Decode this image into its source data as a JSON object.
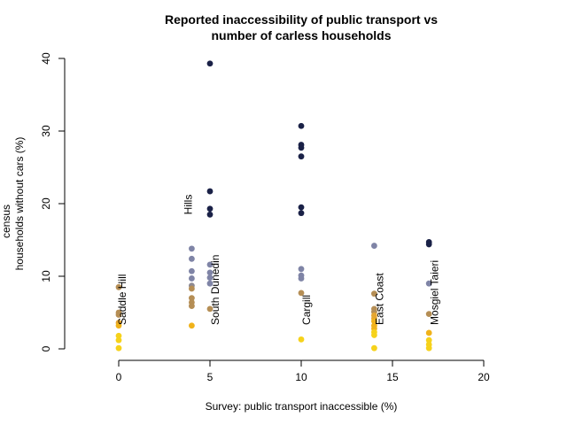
{
  "chart_data": {
    "type": "scatter",
    "title_lines": [
      "Reported inaccessibility of public transport vs",
      "number of carless households"
    ],
    "xlabel": "Survey: public transport inaccessible (%)",
    "ylabel_lines": [
      "census",
      "households without cars (%)"
    ],
    "xlim": [
      0,
      20
    ],
    "ylim": [
      0,
      40
    ],
    "xticks": [
      "0",
      "5",
      "10",
      "15",
      "20"
    ],
    "yticks": [
      "0",
      "10",
      "20",
      "30",
      "40"
    ],
    "grid": false,
    "legend": "none",
    "point_labels": [
      {
        "text": "Saddle Hill",
        "x": 0.2,
        "y": 3.3
      },
      {
        "text": "Hills",
        "x": 3.8,
        "y": 18.5
      },
      {
        "text": "South Dunedin",
        "x": 5.3,
        "y": 3.3
      },
      {
        "text": "Cargill",
        "x": 10.3,
        "y": 3.3
      },
      {
        "text": "East Coast",
        "x": 14.3,
        "y": 3.3
      },
      {
        "text": "Mosgiel Taieri",
        "x": 17.3,
        "y": 3.3
      }
    ],
    "points": [
      {
        "x": 0,
        "y": 8.5,
        "color": "#b58e55"
      },
      {
        "x": 0,
        "y": 5.0,
        "color": "#b58e55"
      },
      {
        "x": 0,
        "y": 4.7,
        "color": "#b58e55"
      },
      {
        "x": 0,
        "y": 3.6,
        "color": "#e5a630"
      },
      {
        "x": 0,
        "y": 3.2,
        "color": "#f0b21a"
      },
      {
        "x": 0,
        "y": 1.8,
        "color": "#f6d21b"
      },
      {
        "x": 0,
        "y": 1.2,
        "color": "#f6d21b"
      },
      {
        "x": 0,
        "y": 0.1,
        "color": "#f6d21b"
      },
      {
        "x": 4,
        "y": 13.8,
        "color": "#7f84a6"
      },
      {
        "x": 4,
        "y": 12.4,
        "color": "#7f84a6"
      },
      {
        "x": 4,
        "y": 10.7,
        "color": "#7f84a6"
      },
      {
        "x": 4,
        "y": 9.7,
        "color": "#7f84a6"
      },
      {
        "x": 4,
        "y": 8.7,
        "color": "#8e8a93"
      },
      {
        "x": 4,
        "y": 8.3,
        "color": "#b58e55"
      },
      {
        "x": 4,
        "y": 7.0,
        "color": "#b58e55"
      },
      {
        "x": 4,
        "y": 6.4,
        "color": "#b58e55"
      },
      {
        "x": 4,
        "y": 5.9,
        "color": "#b58e55"
      },
      {
        "x": 4,
        "y": 3.2,
        "color": "#f0b21a"
      },
      {
        "x": 5,
        "y": 39.3,
        "color": "#1a2147"
      },
      {
        "x": 5,
        "y": 21.7,
        "color": "#1a2147"
      },
      {
        "x": 5,
        "y": 19.3,
        "color": "#1a2147"
      },
      {
        "x": 5,
        "y": 18.5,
        "color": "#1a2147"
      },
      {
        "x": 5,
        "y": 11.6,
        "color": "#7f84a6"
      },
      {
        "x": 5,
        "y": 10.5,
        "color": "#7f84a6"
      },
      {
        "x": 5,
        "y": 9.8,
        "color": "#7f84a6"
      },
      {
        "x": 5,
        "y": 9.0,
        "color": "#7f84a6"
      },
      {
        "x": 5,
        "y": 5.5,
        "color": "#b58e55"
      },
      {
        "x": 10,
        "y": 30.7,
        "color": "#1a2147"
      },
      {
        "x": 10,
        "y": 28.1,
        "color": "#1a2147"
      },
      {
        "x": 10,
        "y": 27.7,
        "color": "#1a2147"
      },
      {
        "x": 10,
        "y": 26.5,
        "color": "#1a2147"
      },
      {
        "x": 10,
        "y": 19.5,
        "color": "#1a2147"
      },
      {
        "x": 10,
        "y": 18.7,
        "color": "#1a2147"
      },
      {
        "x": 10,
        "y": 11.0,
        "color": "#7f84a6"
      },
      {
        "x": 10,
        "y": 10.1,
        "color": "#7f84a6"
      },
      {
        "x": 10,
        "y": 9.7,
        "color": "#7f84a6"
      },
      {
        "x": 10,
        "y": 7.7,
        "color": "#b58e55"
      },
      {
        "x": 10,
        "y": 1.3,
        "color": "#f6d21b"
      },
      {
        "x": 14,
        "y": 14.2,
        "color": "#7f84a6"
      },
      {
        "x": 14,
        "y": 7.6,
        "color": "#b58e55"
      },
      {
        "x": 14,
        "y": 5.5,
        "color": "#b58e55"
      },
      {
        "x": 14,
        "y": 5.1,
        "color": "#b58e55"
      },
      {
        "x": 14,
        "y": 4.6,
        "color": "#e5a630"
      },
      {
        "x": 14,
        "y": 4.2,
        "color": "#e5a630"
      },
      {
        "x": 14,
        "y": 3.8,
        "color": "#f0b21a"
      },
      {
        "x": 14,
        "y": 3.2,
        "color": "#f0b21a"
      },
      {
        "x": 14,
        "y": 2.8,
        "color": "#f0b21a"
      },
      {
        "x": 14,
        "y": 2.3,
        "color": "#f6d21b"
      },
      {
        "x": 14,
        "y": 1.9,
        "color": "#f6d21b"
      },
      {
        "x": 14,
        "y": 0.1,
        "color": "#f6d21b"
      },
      {
        "x": 17,
        "y": 14.7,
        "color": "#1a2147"
      },
      {
        "x": 17,
        "y": 14.4,
        "color": "#1a2147"
      },
      {
        "x": 17,
        "y": 9.0,
        "color": "#7f84a6"
      },
      {
        "x": 17,
        "y": 4.8,
        "color": "#b58e55"
      },
      {
        "x": 17,
        "y": 2.2,
        "color": "#f0b21a"
      },
      {
        "x": 17,
        "y": 1.2,
        "color": "#f6d21b"
      },
      {
        "x": 17,
        "y": 0.6,
        "color": "#f6d21b"
      },
      {
        "x": 17,
        "y": 0.1,
        "color": "#f6d21b"
      }
    ]
  }
}
